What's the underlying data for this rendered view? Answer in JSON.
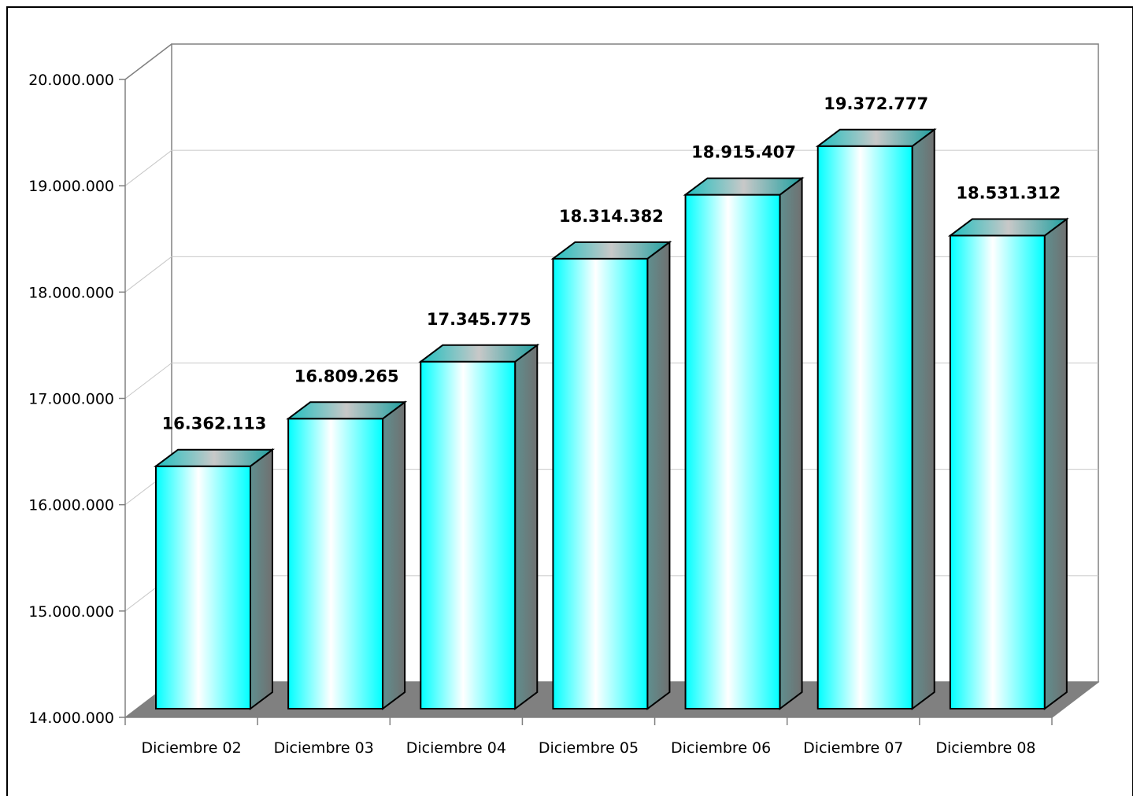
{
  "chart_data": {
    "type": "bar",
    "style": "3d-column",
    "categories": [
      "Diciembre 02",
      "Diciembre 03",
      "Diciembre 04",
      "Diciembre 05",
      "Diciembre 06",
      "Diciembre 07",
      "Diciembre 08"
    ],
    "values": [
      16362113,
      16809265,
      17345775,
      18314382,
      18915407,
      19372777,
      18531312
    ],
    "value_labels": [
      "16.362.113",
      "16.809.265",
      "17.345.775",
      "18.314.382",
      "18.915.407",
      "19.372.777",
      "18.531.312"
    ],
    "y_ticks": [
      14000000,
      15000000,
      16000000,
      17000000,
      18000000,
      19000000,
      20000000
    ],
    "y_tick_labels": [
      "14.000.000",
      "15.000.000",
      "16.000.000",
      "17.000.000",
      "18.000.000",
      "19.000.000",
      "20.000.000"
    ],
    "ylim": [
      14000000,
      20000000
    ],
    "title": "",
    "xlabel": "",
    "ylabel": "",
    "grid": true,
    "legend": "none",
    "colors": {
      "bar_front_edge": "#00FFFF",
      "bar_front_center": "#FFFFFF",
      "bar_side": "#6E7A7A",
      "bar_top": "#B0C0C0",
      "floor": "#808080",
      "gridline": "#C8C8C8",
      "axis": "#808080"
    }
  }
}
